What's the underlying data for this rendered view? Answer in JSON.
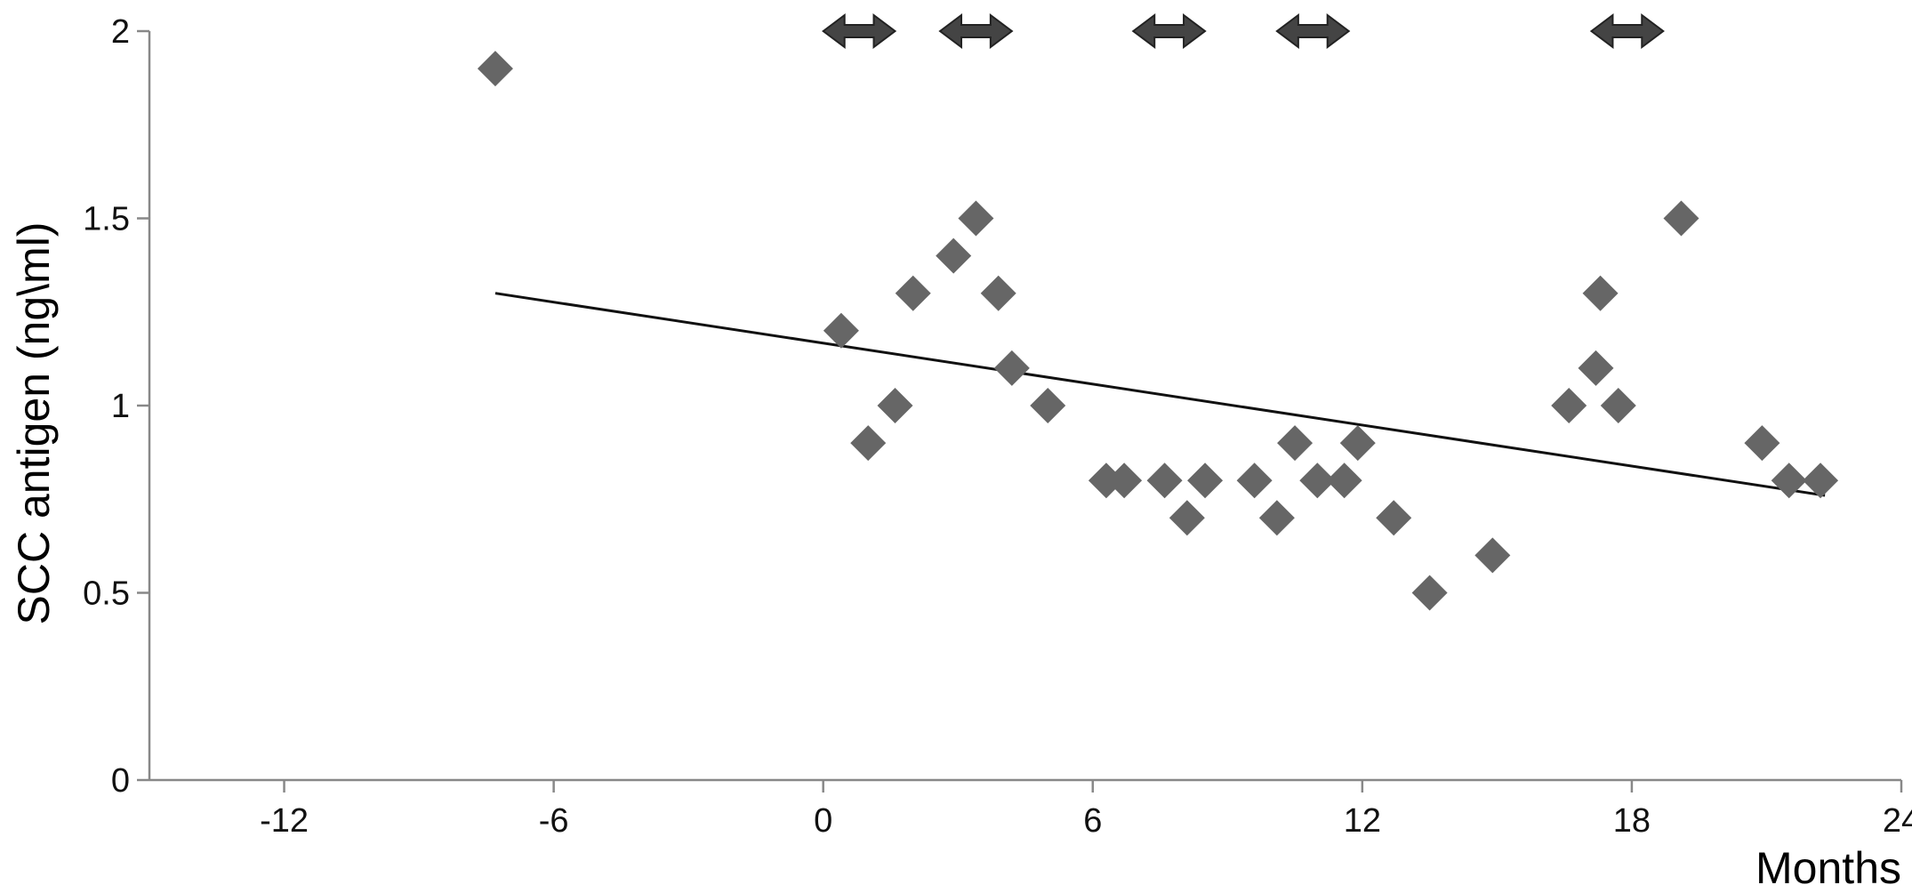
{
  "chart_data": {
    "type": "scatter",
    "xlabel": "Months",
    "ylabel": "SCC antigen (ng\\ml)",
    "xlim": [
      -15,
      24
    ],
    "ylim": [
      0,
      2
    ],
    "x_ticks": [
      -12,
      -6,
      0,
      6,
      12,
      18,
      24
    ],
    "y_ticks": [
      0,
      0.5,
      1,
      1.5,
      2
    ],
    "x_tick_labels": [
      "-12",
      "-6",
      "0",
      "6",
      "12",
      "18",
      "24"
    ],
    "y_tick_labels": [
      "0",
      "0.5",
      "1",
      "1.5",
      "2"
    ],
    "grid": false,
    "legend": "none",
    "marker_color": "#666666",
    "series": [
      {
        "values": [
          {
            "x": -7.3,
            "y": 1.9
          },
          {
            "x": 0.4,
            "y": 1.2
          },
          {
            "x": 1.0,
            "y": 0.9
          },
          {
            "x": 1.6,
            "y": 1.0
          },
          {
            "x": 2.0,
            "y": 1.3
          },
          {
            "x": 2.9,
            "y": 1.4
          },
          {
            "x": 3.4,
            "y": 1.5
          },
          {
            "x": 3.9,
            "y": 1.3
          },
          {
            "x": 4.2,
            "y": 1.1
          },
          {
            "x": 5.0,
            "y": 1.0
          },
          {
            "x": 6.3,
            "y": 0.8
          },
          {
            "x": 6.7,
            "y": 0.8
          },
          {
            "x": 7.6,
            "y": 0.8
          },
          {
            "x": 8.1,
            "y": 0.7
          },
          {
            "x": 8.5,
            "y": 0.8
          },
          {
            "x": 9.6,
            "y": 0.8
          },
          {
            "x": 10.1,
            "y": 0.7
          },
          {
            "x": 10.5,
            "y": 0.9
          },
          {
            "x": 11.0,
            "y": 0.8
          },
          {
            "x": 11.6,
            "y": 0.8
          },
          {
            "x": 11.9,
            "y": 0.9
          },
          {
            "x": 12.7,
            "y": 0.7
          },
          {
            "x": 13.5,
            "y": 0.5
          },
          {
            "x": 14.9,
            "y": 0.6
          },
          {
            "x": 16.6,
            "y": 1.0
          },
          {
            "x": 17.2,
            "y": 1.1
          },
          {
            "x": 17.3,
            "y": 1.3
          },
          {
            "x": 17.7,
            "y": 1.0
          },
          {
            "x": 19.1,
            "y": 1.5
          },
          {
            "x": 20.9,
            "y": 0.9
          },
          {
            "x": 21.5,
            "y": 0.8
          },
          {
            "x": 22.2,
            "y": 0.8
          }
        ]
      }
    ],
    "trendline": {
      "x": [
        -7.3,
        22.3
      ],
      "y": [
        1.3,
        0.76
      ],
      "color": "#111111"
    },
    "annotations": [
      {
        "type": "double-arrow",
        "x_start": 0.0,
        "x_end": 1.6,
        "y": 2.0
      },
      {
        "type": "double-arrow",
        "x_start": 2.6,
        "x_end": 4.2,
        "y": 2.0
      },
      {
        "type": "double-arrow",
        "x_start": 6.9,
        "x_end": 8.5,
        "y": 2.0
      },
      {
        "type": "double-arrow",
        "x_start": 10.1,
        "x_end": 11.7,
        "y": 2.0
      },
      {
        "type": "double-arrow",
        "x_start": 17.1,
        "x_end": 18.7,
        "y": 2.0
      }
    ],
    "annotation_color": "#444444"
  }
}
